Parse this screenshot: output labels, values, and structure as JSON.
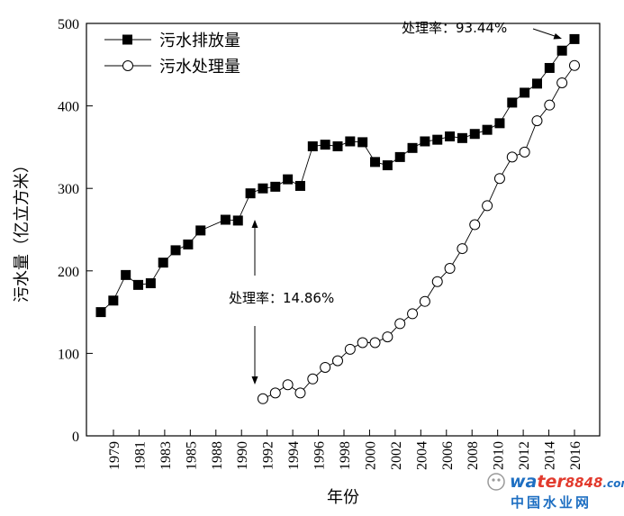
{
  "chart_data": {
    "type": "line",
    "title": "",
    "xlabel": "年份",
    "ylabel": "污水量（亿立方米）",
    "ylim": [
      0,
      500
    ],
    "yticks": [
      0,
      100,
      200,
      300,
      400,
      500
    ],
    "x_tick_labels": [
      "1979",
      "1981",
      "1983",
      "1985",
      "1988",
      "1990",
      "1992",
      "1994",
      "1996",
      "1998",
      "2000",
      "2002",
      "2004",
      "2006",
      "2008",
      "2010",
      "2012",
      "2014",
      "2016"
    ],
    "grid": false,
    "legend_position": "top-left",
    "series": [
      {
        "name": "污水排放量",
        "marker": "filled-square",
        "color": "#000000",
        "x": [
          1978,
          1979,
          1980,
          1981,
          1982,
          1983,
          1984,
          1985,
          1986,
          1988,
          1989,
          1990,
          1991,
          1992,
          1993,
          1994,
          1995,
          1996,
          1997,
          1998,
          1999,
          2000,
          2001,
          2002,
          2003,
          2004,
          2005,
          2006,
          2007,
          2008,
          2009,
          2010,
          2011,
          2012,
          2013,
          2014,
          2015,
          2016
        ],
        "values": [
          150,
          164,
          195,
          183,
          185,
          210,
          225,
          232,
          249,
          262,
          261,
          294,
          300,
          302,
          311,
          303,
          351,
          353,
          351,
          357,
          356,
          332,
          328,
          338,
          349,
          357,
          359,
          363,
          361,
          366,
          371,
          379,
          404,
          416,
          427,
          446,
          467,
          481
        ]
      },
      {
        "name": "污水处理量",
        "marker": "open-circle",
        "color": "#000000",
        "x": [
          1991,
          1992,
          1993,
          1994,
          1995,
          1996,
          1997,
          1998,
          1999,
          2000,
          2001,
          2002,
          2003,
          2004,
          2005,
          2006,
          2007,
          2008,
          2009,
          2010,
          2011,
          2012,
          2013,
          2014,
          2015,
          2016
        ],
        "values": [
          45,
          52,
          62,
          52,
          69,
          83,
          91,
          105,
          113,
          113,
          120,
          136,
          148,
          163,
          187,
          203,
          227,
          256,
          279,
          312,
          338,
          344,
          382,
          401,
          428,
          449
        ]
      }
    ],
    "annotations": [
      {
        "text": "处理率：14.86%",
        "x": 1991,
        "y": 300,
        "y_end": 45
      },
      {
        "text": "处理率：93.44%",
        "x": 2016,
        "y": 481
      }
    ]
  },
  "watermark": {
    "brand_a": "wa",
    "brand_b": "ter",
    "brand_c": "8848",
    "brand_d": ".com",
    "subtitle": "中国水业网"
  }
}
